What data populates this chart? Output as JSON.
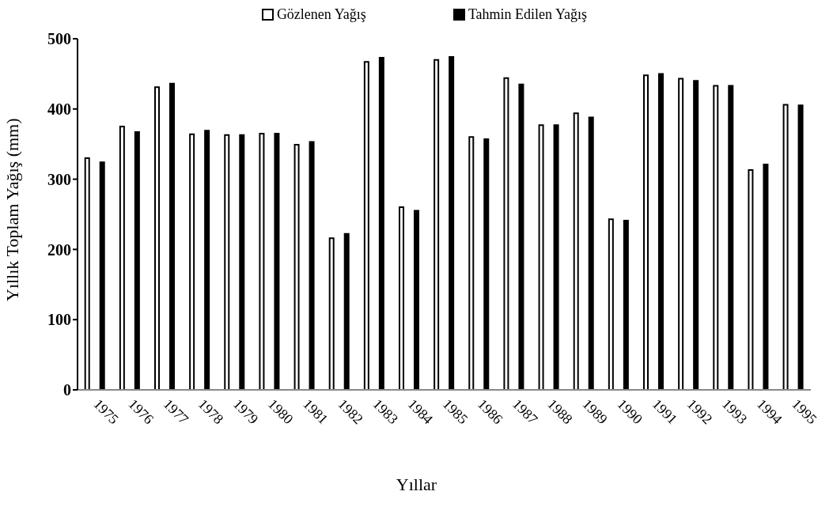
{
  "chart_data": {
    "type": "bar",
    "xlabel": "Yıllar",
    "ylabel": "Yıllık Toplam Yağış (mm)",
    "categories": [
      "1975",
      "1976",
      "1977",
      "1978",
      "1979",
      "1980",
      "1981",
      "1982",
      "1983",
      "1984",
      "1985",
      "1986",
      "1987",
      "1988",
      "1989",
      "1990",
      "1991",
      "1992",
      "1993",
      "1994",
      "1995"
    ],
    "series": [
      {
        "name": "Gözlenen Yağış",
        "color": "#ffffff",
        "values": [
          330,
          375,
          431,
          364,
          363,
          365,
          349,
          216,
          467,
          260,
          470,
          360,
          444,
          377,
          394,
          243,
          448,
          443,
          433,
          313,
          406
        ]
      },
      {
        "name": "Tahmin Edilen Yağış",
        "color": "#000000",
        "values": [
          324,
          367,
          436,
          369,
          363,
          365,
          353,
          222,
          473,
          255,
          474,
          357,
          435,
          377,
          388,
          241,
          450,
          440,
          433,
          321,
          405
        ]
      }
    ],
    "ylim": [
      0,
      500
    ],
    "yticks": [
      0,
      100,
      200,
      300,
      400,
      500
    ],
    "grid": false,
    "legend": "top"
  }
}
